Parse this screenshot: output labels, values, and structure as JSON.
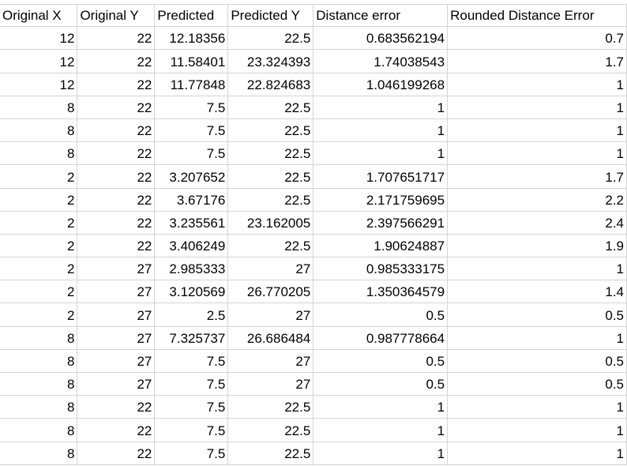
{
  "sheet": {
    "headers": [
      "Original X",
      "Original Y",
      "Predicted",
      "Predicted Y",
      "Distance error",
      "Rounded Distance Error"
    ],
    "rows": [
      [
        "12",
        "22",
        "12.18356",
        "22.5",
        "0.683562194",
        "0.7"
      ],
      [
        "12",
        "22",
        "11.58401",
        "23.324393",
        "1.74038543",
        "1.7"
      ],
      [
        "12",
        "22",
        "11.77848",
        "22.824683",
        "1.046199268",
        "1"
      ],
      [
        "8",
        "22",
        "7.5",
        "22.5",
        "1",
        "1"
      ],
      [
        "8",
        "22",
        "7.5",
        "22.5",
        "1",
        "1"
      ],
      [
        "8",
        "22",
        "7.5",
        "22.5",
        "1",
        "1"
      ],
      [
        "2",
        "22",
        "3.207652",
        "22.5",
        "1.707651717",
        "1.7"
      ],
      [
        "2",
        "22",
        "3.67176",
        "22.5",
        "2.171759695",
        "2.2"
      ],
      [
        "2",
        "22",
        "3.235561",
        "23.162005",
        "2.397566291",
        "2.4"
      ],
      [
        "2",
        "22",
        "3.406249",
        "22.5",
        "1.90624887",
        "1.9"
      ],
      [
        "2",
        "27",
        "2.985333",
        "27",
        "0.985333175",
        "1"
      ],
      [
        "2",
        "27",
        "3.120569",
        "26.770205",
        "1.350364579",
        "1.4"
      ],
      [
        "2",
        "27",
        "2.5",
        "27",
        "0.5",
        "0.5"
      ],
      [
        "8",
        "27",
        "7.325737",
        "26.686484",
        "0.987778664",
        "1"
      ],
      [
        "8",
        "27",
        "7.5",
        "27",
        "0.5",
        "0.5"
      ],
      [
        "8",
        "27",
        "7.5",
        "27",
        "0.5",
        "0.5"
      ],
      [
        "8",
        "22",
        "7.5",
        "22.5",
        "1",
        "1"
      ],
      [
        "8",
        "22",
        "7.5",
        "22.5",
        "1",
        "1"
      ],
      [
        "8",
        "22",
        "7.5",
        "22.5",
        "1",
        "1"
      ]
    ]
  }
}
